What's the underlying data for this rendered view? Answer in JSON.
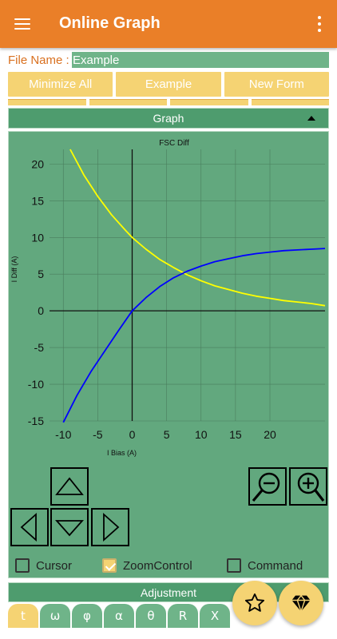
{
  "appbar": {
    "title": "Online Graph",
    "menu_icon": "hamburger-menu-icon",
    "overflow_icon": "more-vert-icon"
  },
  "file": {
    "label": "File Name :",
    "value": "Example"
  },
  "buttons": {
    "minimize_all": "Minimize All",
    "example": "Example",
    "new_form": "New Form"
  },
  "graph_panel": {
    "title": "Graph"
  },
  "chart_data": {
    "type": "line",
    "title": "FSC Diff",
    "xlabel": "I Bias (A)",
    "ylabel": "I Diff (A)",
    "xlim": [
      -12,
      28
    ],
    "ylim": [
      -15,
      22
    ],
    "x_ticks": [
      -10,
      -5,
      0,
      5,
      10,
      15,
      20
    ],
    "y_ticks": [
      20,
      15,
      10,
      5,
      0,
      -5,
      -10,
      -15
    ],
    "grid": true,
    "series": [
      {
        "color": "#ffff00",
        "x": [
          -9,
          -7,
          -5,
          -3,
          -1,
          0,
          2,
          4,
          6,
          8,
          10,
          12,
          14,
          16,
          18,
          20,
          22,
          24,
          26,
          28
        ],
        "y": [
          22,
          18.5,
          15.6,
          13.1,
          11.0,
          10.0,
          8.4,
          7.0,
          5.9,
          4.9,
          4.1,
          3.4,
          2.9,
          2.4,
          2.0,
          1.7,
          1.4,
          1.2,
          1.0,
          0.7
        ]
      },
      {
        "color": "#0000ff",
        "x": [
          -10,
          -8,
          -6,
          -4,
          -2,
          0,
          2,
          4,
          6,
          8,
          10,
          12,
          14,
          16,
          18,
          20,
          22,
          24,
          26,
          28
        ],
        "y": [
          -15.2,
          -11.5,
          -8.3,
          -5.5,
          -2.7,
          0,
          1.8,
          3.3,
          4.5,
          5.4,
          6.1,
          6.7,
          7.1,
          7.5,
          7.8,
          8.0,
          8.2,
          8.3,
          8.4,
          8.5
        ]
      }
    ]
  },
  "controls": {
    "up": "arrow-up-icon",
    "down": "arrow-down-icon",
    "left": "arrow-left-icon",
    "right": "arrow-right-icon",
    "zoom_out": "zoom-out-icon",
    "zoom_in": "zoom-in-icon"
  },
  "checkboxes": [
    {
      "label": "Cursor",
      "checked": false
    },
    {
      "label": "ZoomControl",
      "checked": true
    },
    {
      "label": "Command",
      "checked": false
    }
  ],
  "adjustment": {
    "title": "Adjustment",
    "keys": [
      "t",
      "ω",
      "φ",
      "α",
      "θ",
      "R",
      "X"
    ]
  },
  "fabs": {
    "favorite": "star-icon",
    "premium": "diamond-icon"
  },
  "colors": {
    "appbar": "#ea7f28",
    "accent": "#f5d373",
    "panel": "#62a87e"
  }
}
